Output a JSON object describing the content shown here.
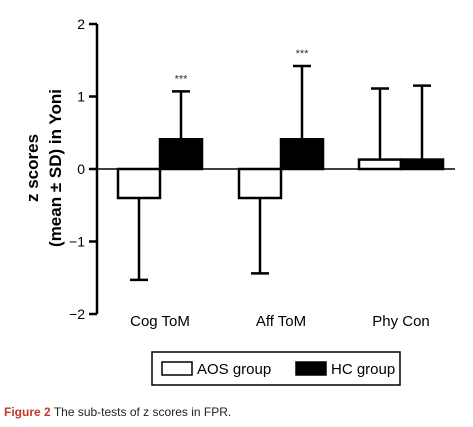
{
  "chart_data": {
    "type": "bar",
    "ylabel_line1": "z scores",
    "ylabel_line2": "(mean ± SD) in Yoni",
    "ylim": [
      -2,
      2
    ],
    "yticks": [
      -2,
      -1,
      0,
      1,
      2
    ],
    "ytick_labels": [
      "−2",
      "−1",
      "0",
      "1",
      "2"
    ],
    "categories": [
      "Cog ToM",
      "Aff ToM",
      "Phy Con"
    ],
    "series": [
      {
        "name": "AOS group",
        "color": "#ffffff",
        "values": [
          -0.4,
          -0.4,
          0.13
        ],
        "sd": [
          1.13,
          1.04,
          0.98
        ]
      },
      {
        "name": "HC group",
        "color": "#000000",
        "values": [
          0.41,
          0.41,
          0.13
        ],
        "sd": [
          0.66,
          1.01,
          1.02
        ]
      }
    ],
    "annotations": [
      {
        "category": "Cog ToM",
        "text": "***"
      },
      {
        "category": "Aff ToM",
        "text": "***"
      }
    ],
    "legend_position": "bottom"
  },
  "caption": {
    "label": "Figure 2",
    "text": "The sub-tests of z scores in FPR."
  }
}
